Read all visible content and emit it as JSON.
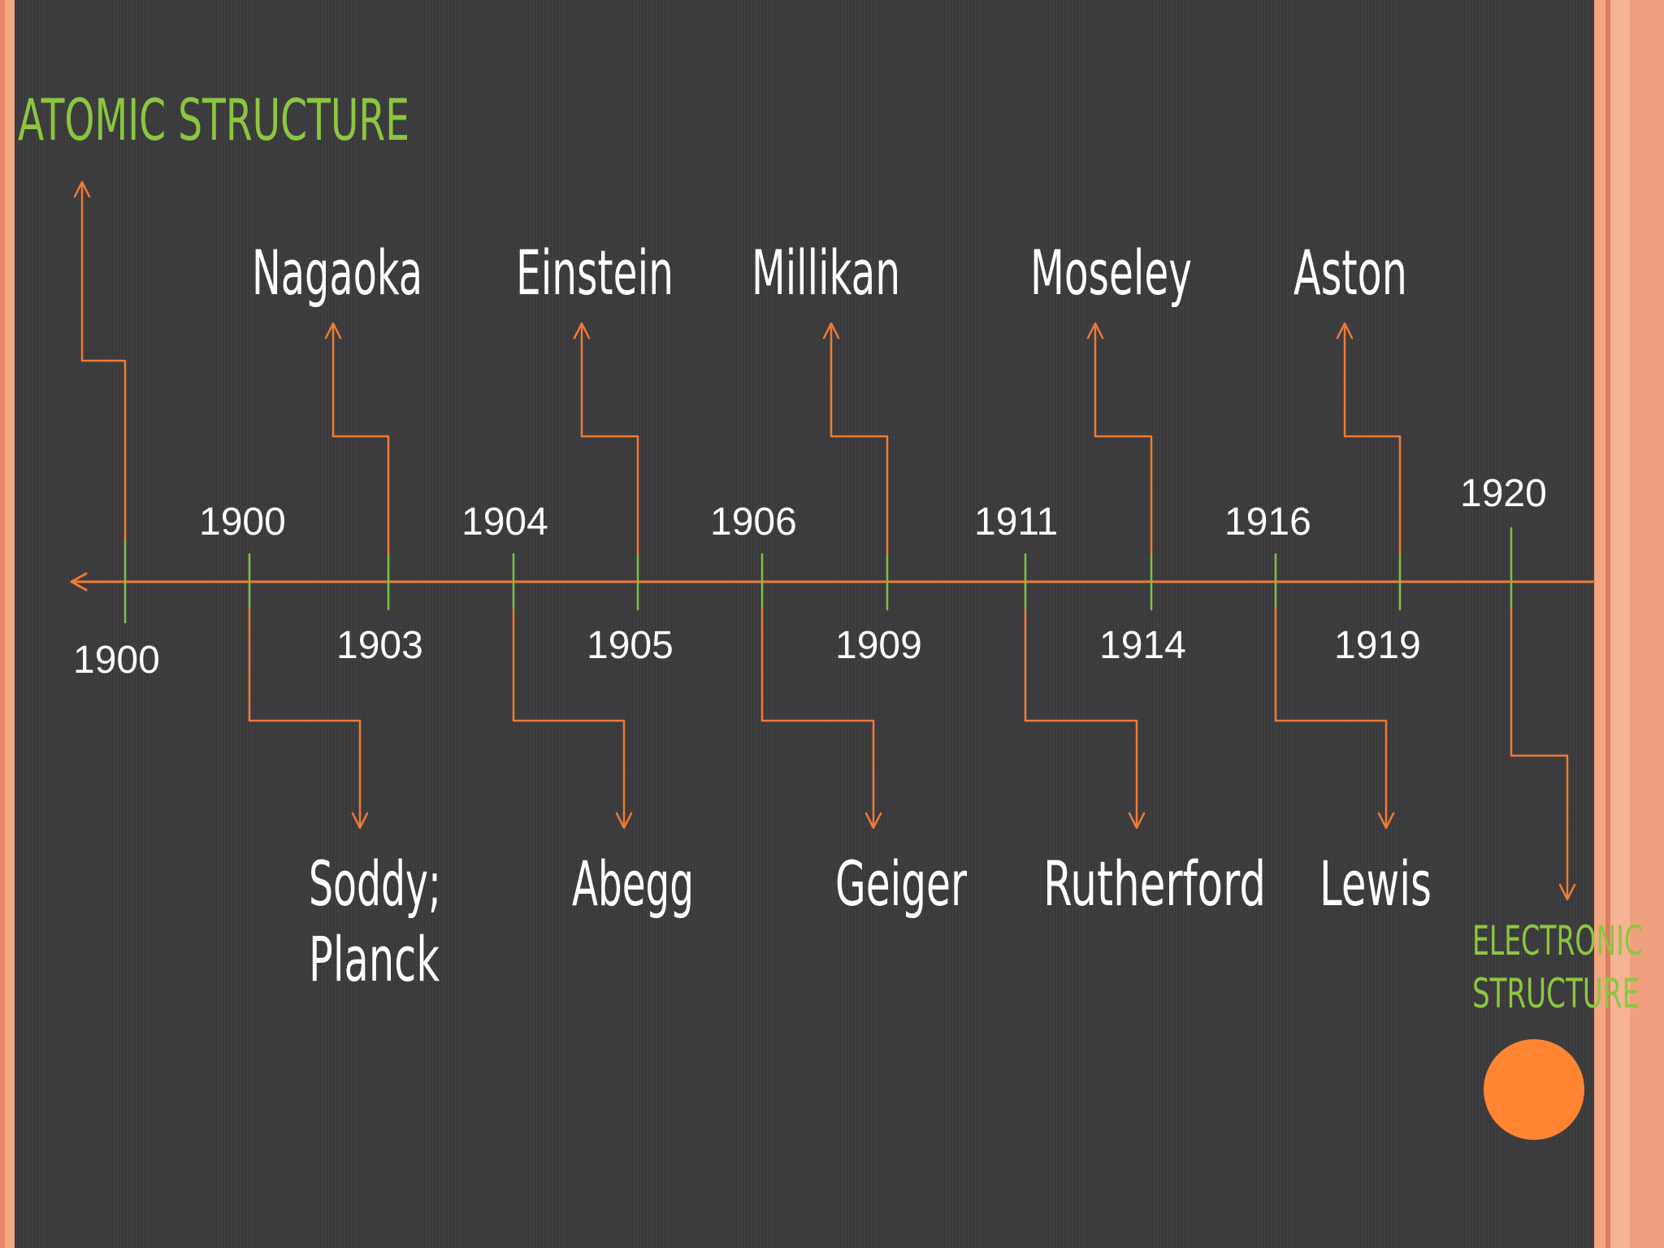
{
  "slide": {
    "title": "ATOMIC STRUCTURE",
    "end_label_line1": "ELECTRONIC",
    "end_label_line2": "STRUCTURE"
  },
  "colors": {
    "background": "#3b3b3d",
    "accent_orange": "#f07a35",
    "tick_green": "#7cc242",
    "title_green": "#8cc63f",
    "text_white": "#ffffff",
    "side_stripe": "#f4a582",
    "dot_orange": "#ff8533"
  },
  "timeline": {
    "start_label": "1900",
    "events": [
      {
        "year": "1900",
        "name_line1": "Soddy;",
        "name_line2": "Planck",
        "side": "below"
      },
      {
        "year": "1903",
        "name_line1": "Nagaoka",
        "side": "above"
      },
      {
        "year": "1904",
        "name_line1": "Abegg",
        "side": "below"
      },
      {
        "year": "1905",
        "name_line1": "Einstein",
        "side": "above"
      },
      {
        "year": "1906",
        "name_line1": "Geiger",
        "side": "below"
      },
      {
        "year": "1909",
        "name_line1": "Millikan",
        "side": "above"
      },
      {
        "year": "1911",
        "name_line1": "Rutherford",
        "side": "below"
      },
      {
        "year": "1914",
        "name_line1": "Moseley",
        "side": "above"
      },
      {
        "year": "1916",
        "name_line1": "Lewis",
        "side": "below"
      },
      {
        "year": "1919",
        "name_line1": "Aston",
        "side": "above"
      }
    ],
    "end_year": "1920"
  }
}
